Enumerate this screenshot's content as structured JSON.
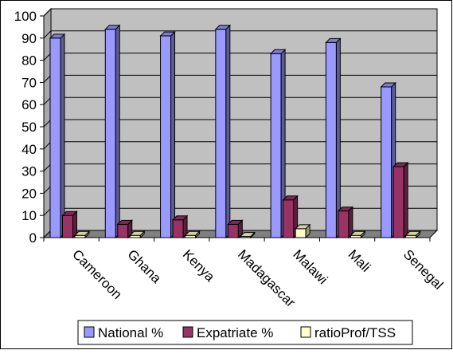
{
  "chart_data": {
    "type": "bar",
    "categories": [
      "Cameroon",
      "Ghana",
      "Kenya",
      "Madagascar",
      "Malawi",
      "Mali",
      "Senegal"
    ],
    "series": [
      {
        "name": "National %",
        "values": [
          90,
          94,
          91,
          94,
          83,
          88,
          68
        ],
        "color": "#9999ff"
      },
      {
        "name": "Expatriate %",
        "values": [
          10,
          6,
          8,
          6,
          17,
          12,
          32
        ],
        "color": "#993366"
      },
      {
        "name": "ratioProf/TSS",
        "values": [
          1,
          1,
          1,
          0.5,
          4,
          1,
          1
        ],
        "color": "#ffffcc"
      }
    ],
    "ylim": [
      0,
      100
    ],
    "yticks": [
      0,
      10,
      20,
      30,
      40,
      50,
      60,
      70,
      80,
      90,
      100
    ],
    "grid": true,
    "legend_position": "bottom",
    "colors": {
      "plot_wall": "#c0c0c0",
      "floor": "#808080",
      "gridline": "#000000"
    }
  }
}
